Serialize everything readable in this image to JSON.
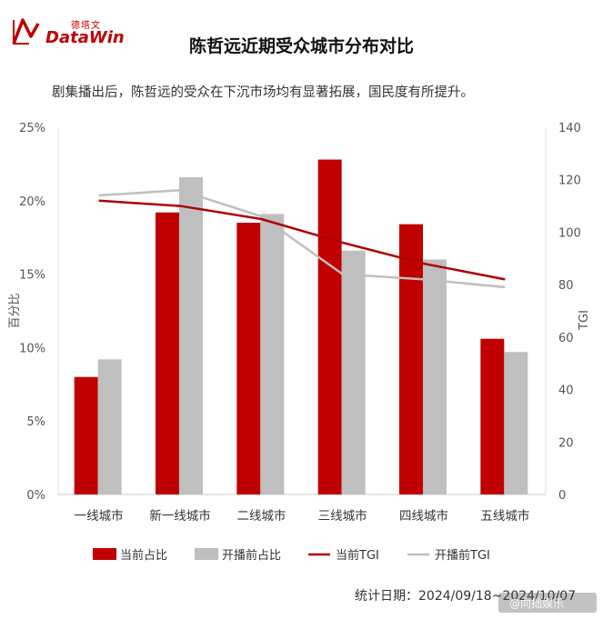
{
  "brand": {
    "name_cn": "德塔文",
    "name_en": "DataWin",
    "brand_color": "#c00000"
  },
  "title": "陈哲远近期受众城市分布对比",
  "subtitle": "剧集播出后，陈哲远的受众在下沉市场均有显著拓展，国民度有所提升。",
  "footer": "统计日期：2024/09/18~2024/10/07",
  "watermark": "@向拙娱乐",
  "chart_data": {
    "type": "bar",
    "categories": [
      "一线城市",
      "新一线城市",
      "二线城市",
      "三线城市",
      "四线城市",
      "五线城市"
    ],
    "series": [
      {
        "name": "当前占比",
        "kind": "bar",
        "axis": "left",
        "color": "#c00000",
        "values": [
          8.0,
          19.2,
          18.5,
          22.8,
          18.4,
          10.6
        ]
      },
      {
        "name": "开播前占比",
        "kind": "bar",
        "axis": "left",
        "color": "#bfbfbf",
        "values": [
          9.2,
          21.6,
          19.1,
          16.6,
          16.0,
          9.7
        ]
      },
      {
        "name": "当前TGI",
        "kind": "line",
        "axis": "right",
        "color": "#b00000",
        "values": [
          112,
          110,
          105,
          96,
          88,
          82
        ]
      },
      {
        "name": "开播前TGI",
        "kind": "line",
        "axis": "right",
        "color": "#bfbfbf",
        "values": [
          114,
          116,
          106,
          84,
          82,
          79
        ]
      }
    ],
    "ylabel_left": "百分比",
    "ylabel_right": "TGI",
    "ylim_left": [
      0,
      25
    ],
    "ylim_right": [
      0,
      140
    ],
    "yticks_left": [
      "0%",
      "5%",
      "10%",
      "15%",
      "20%",
      "25%"
    ],
    "yticks_right": [
      "0",
      "20",
      "40",
      "60",
      "80",
      "100",
      "120",
      "140"
    ],
    "legend_position": "bottom",
    "grid": false
  }
}
